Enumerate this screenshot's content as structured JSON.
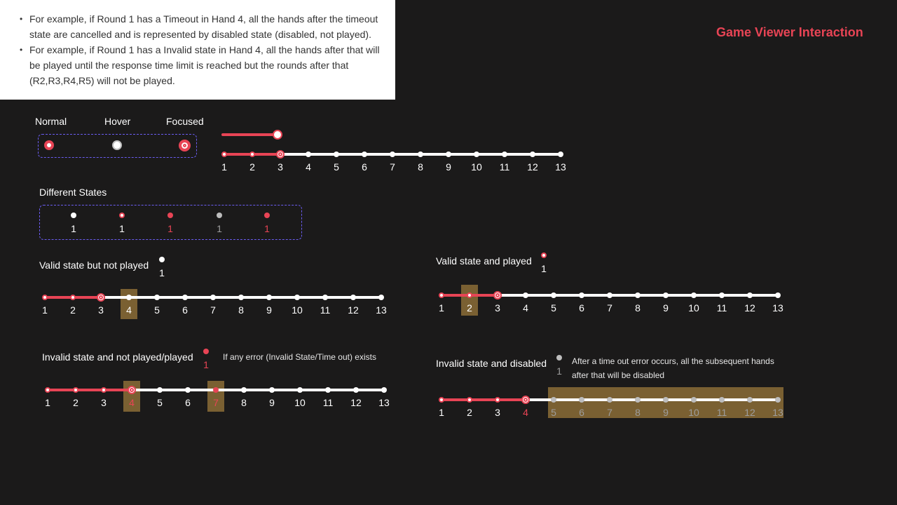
{
  "title": "Game Viewer Interaction",
  "colors": {
    "accent": "#e84455",
    "highlight": "#7a6032",
    "background": "#1b1a1a",
    "dashed_border": "#6a5cf0"
  },
  "notes": [
    "For example, if Round 1 has a Timeout in Hand 4, all the hands after the timeout state are cancelled and is represented by disabled state (disabled, not played).",
    "For example, if Round 1 has a Invalid state in Hand 4, all the hands after that will be played until the response time limit is reached but the rounds after that (R2,R3,R4,R5) will not be played."
  ],
  "interaction_states": {
    "normal": "Normal",
    "hover": "Hover",
    "focused": "Focused"
  },
  "different_states": {
    "title": "Different States",
    "numbers": [
      "1",
      "1",
      "1",
      "1",
      "1"
    ]
  },
  "examples": {
    "valid_not_played": {
      "title": "Valid state but not played",
      "sample_number": "1"
    },
    "valid_played": {
      "title": "Valid state and played",
      "sample_number": "1"
    },
    "invalid_not_played": {
      "title": "Invalid state and not played/played",
      "sample_number": "1",
      "note": "If any error (Invalid State/Time out) exists"
    },
    "invalid_disabled": {
      "title": "Invalid state and disabled",
      "sample_number": "1",
      "note": "After a time out error occurs, all the subsequent hands after that will be disabled"
    }
  },
  "hands": [
    "1",
    "2",
    "3",
    "4",
    "5",
    "6",
    "7",
    "8",
    "9",
    "10",
    "11",
    "12",
    "13"
  ]
}
